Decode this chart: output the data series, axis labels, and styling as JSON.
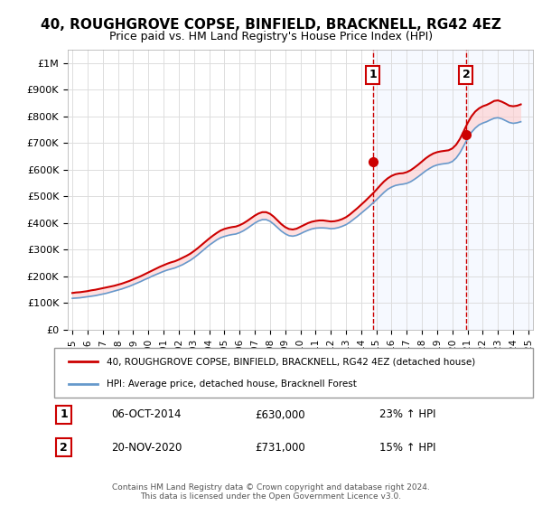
{
  "title": "40, ROUGHGROVE COPSE, BINFIELD, BRACKNELL, RG42 4EZ",
  "subtitle": "Price paid vs. HM Land Registry's House Price Index (HPI)",
  "legend_line1": "40, ROUGHGROVE COPSE, BINFIELD, BRACKNELL, RG42 4EZ (detached house)",
  "legend_line2": "HPI: Average price, detached house, Bracknell Forest",
  "annotation1_label": "1",
  "annotation1_date": "06-OCT-2014",
  "annotation1_price": "£630,000",
  "annotation1_hpi": "23% ↑ HPI",
  "annotation2_label": "2",
  "annotation2_date": "20-NOV-2020",
  "annotation2_price": "£731,000",
  "annotation2_hpi": "15% ↑ HPI",
  "footer": "Contains HM Land Registry data © Crown copyright and database right 2024.\nThis data is licensed under the Open Government Licence v3.0.",
  "red_color": "#cc0000",
  "blue_color": "#6699cc",
  "dashed_red": "#cc0000",
  "annotation_box_color": "#cc0000",
  "ylim": [
    0,
    1050000
  ],
  "yticks": [
    0,
    100000,
    200000,
    300000,
    400000,
    500000,
    600000,
    700000,
    800000,
    900000,
    1000000
  ],
  "ytick_labels": [
    "£0",
    "£100K",
    "£200K",
    "£300K",
    "£400K",
    "£500K",
    "£600K",
    "£700K",
    "£800K",
    "£900K",
    "£1M"
  ],
  "xtick_years": [
    1995,
    1996,
    1997,
    1998,
    1999,
    2000,
    2001,
    2002,
    2003,
    2004,
    2005,
    2006,
    2007,
    2008,
    2009,
    2010,
    2011,
    2012,
    2013,
    2014,
    2015,
    2016,
    2017,
    2018,
    2019,
    2020,
    2021,
    2022,
    2023,
    2024,
    2025
  ],
  "sale1_x": 2014.77,
  "sale1_y": 630000,
  "sale2_x": 2020.9,
  "sale2_y": 731000,
  "red_x": [
    1995.0,
    1995.25,
    1995.5,
    1995.75,
    1996.0,
    1996.25,
    1996.5,
    1996.75,
    1997.0,
    1997.25,
    1997.5,
    1997.75,
    1998.0,
    1998.25,
    1998.5,
    1998.75,
    1999.0,
    1999.25,
    1999.5,
    1999.75,
    2000.0,
    2000.25,
    2000.5,
    2000.75,
    2001.0,
    2001.25,
    2001.5,
    2001.75,
    2002.0,
    2002.25,
    2002.5,
    2002.75,
    2003.0,
    2003.25,
    2003.5,
    2003.75,
    2004.0,
    2004.25,
    2004.5,
    2004.75,
    2005.0,
    2005.25,
    2005.5,
    2005.75,
    2006.0,
    2006.25,
    2006.5,
    2006.75,
    2007.0,
    2007.25,
    2007.5,
    2007.75,
    2008.0,
    2008.25,
    2008.5,
    2008.75,
    2009.0,
    2009.25,
    2009.5,
    2009.75,
    2010.0,
    2010.25,
    2010.5,
    2010.75,
    2011.0,
    2011.25,
    2011.5,
    2011.75,
    2012.0,
    2012.25,
    2012.5,
    2012.75,
    2013.0,
    2013.25,
    2013.5,
    2013.75,
    2014.0,
    2014.25,
    2014.5,
    2014.75,
    2015.0,
    2015.25,
    2015.5,
    2015.75,
    2016.0,
    2016.25,
    2016.5,
    2016.75,
    2017.0,
    2017.25,
    2017.5,
    2017.75,
    2018.0,
    2018.25,
    2018.5,
    2018.75,
    2019.0,
    2019.25,
    2019.5,
    2019.75,
    2020.0,
    2020.25,
    2020.5,
    2020.75,
    2021.0,
    2021.25,
    2021.5,
    2021.75,
    2022.0,
    2022.25,
    2022.5,
    2022.75,
    2023.0,
    2023.25,
    2023.5,
    2023.75,
    2024.0,
    2024.25,
    2024.5
  ],
  "red_y": [
    138000,
    140000,
    141000,
    143000,
    145000,
    148000,
    150000,
    153000,
    156000,
    159000,
    162000,
    165000,
    169000,
    173000,
    178000,
    183000,
    189000,
    195000,
    201000,
    208000,
    215000,
    222000,
    229000,
    236000,
    242000,
    248000,
    253000,
    257000,
    263000,
    270000,
    277000,
    285000,
    295000,
    306000,
    318000,
    330000,
    342000,
    353000,
    363000,
    372000,
    378000,
    382000,
    385000,
    387000,
    392000,
    399000,
    408000,
    418000,
    428000,
    436000,
    441000,
    441000,
    435000,
    424000,
    410000,
    396000,
    385000,
    378000,
    376000,
    379000,
    386000,
    393000,
    400000,
    405000,
    408000,
    410000,
    410000,
    408000,
    406000,
    407000,
    410000,
    415000,
    422000,
    432000,
    444000,
    456000,
    469000,
    482000,
    496000,
    510000,
    525000,
    541000,
    556000,
    568000,
    577000,
    583000,
    586000,
    587000,
    591000,
    598000,
    608000,
    619000,
    631000,
    643000,
    653000,
    661000,
    666000,
    669000,
    671000,
    673000,
    680000,
    694000,
    716000,
    745000,
    775000,
    800000,
    818000,
    830000,
    838000,
    843000,
    850000,
    858000,
    860000,
    855000,
    848000,
    840000,
    838000,
    840000,
    845000
  ],
  "blue_x": [
    1995.0,
    1995.25,
    1995.5,
    1995.75,
    1996.0,
    1996.25,
    1996.5,
    1996.75,
    1997.0,
    1997.25,
    1997.5,
    1997.75,
    1998.0,
    1998.25,
    1998.5,
    1998.75,
    1999.0,
    1999.25,
    1999.5,
    1999.75,
    2000.0,
    2000.25,
    2000.5,
    2000.75,
    2001.0,
    2001.25,
    2001.5,
    2001.75,
    2002.0,
    2002.25,
    2002.5,
    2002.75,
    2003.0,
    2003.25,
    2003.5,
    2003.75,
    2004.0,
    2004.25,
    2004.5,
    2004.75,
    2005.0,
    2005.25,
    2005.5,
    2005.75,
    2006.0,
    2006.25,
    2006.5,
    2006.75,
    2007.0,
    2007.25,
    2007.5,
    2007.75,
    2008.0,
    2008.25,
    2008.5,
    2008.75,
    2009.0,
    2009.25,
    2009.5,
    2009.75,
    2010.0,
    2010.25,
    2010.5,
    2010.75,
    2011.0,
    2011.25,
    2011.5,
    2011.75,
    2012.0,
    2012.25,
    2012.5,
    2012.75,
    2013.0,
    2013.25,
    2013.5,
    2013.75,
    2014.0,
    2014.25,
    2014.5,
    2014.75,
    2015.0,
    2015.25,
    2015.5,
    2015.75,
    2016.0,
    2016.25,
    2016.5,
    2016.75,
    2017.0,
    2017.25,
    2017.5,
    2017.75,
    2018.0,
    2018.25,
    2018.5,
    2018.75,
    2019.0,
    2019.25,
    2019.5,
    2019.75,
    2020.0,
    2020.25,
    2020.5,
    2020.75,
    2021.0,
    2021.25,
    2021.5,
    2021.75,
    2022.0,
    2022.25,
    2022.5,
    2022.75,
    2023.0,
    2023.25,
    2023.5,
    2023.75,
    2024.0,
    2024.25,
    2024.5
  ],
  "blue_y": [
    118000,
    119000,
    120000,
    122000,
    124000,
    126000,
    128000,
    131000,
    134000,
    137000,
    141000,
    145000,
    149000,
    153000,
    158000,
    163000,
    169000,
    175000,
    181000,
    188000,
    194000,
    201000,
    207000,
    213000,
    219000,
    224000,
    228000,
    232000,
    238000,
    244000,
    252000,
    260000,
    270000,
    281000,
    293000,
    305000,
    317000,
    327000,
    337000,
    345000,
    350000,
    354000,
    357000,
    359000,
    364000,
    371000,
    380000,
    390000,
    400000,
    408000,
    413000,
    413000,
    407000,
    396000,
    383000,
    370000,
    360000,
    353000,
    351000,
    354000,
    360000,
    367000,
    373000,
    378000,
    381000,
    382000,
    382000,
    381000,
    379000,
    380000,
    383000,
    388000,
    394000,
    403000,
    414000,
    425000,
    437000,
    449000,
    461000,
    474000,
    487000,
    501000,
    515000,
    527000,
    535000,
    541000,
    544000,
    546000,
    549000,
    555000,
    564000,
    574000,
    585000,
    596000,
    605000,
    613000,
    618000,
    621000,
    623000,
    625000,
    631000,
    644000,
    664000,
    690000,
    717000,
    740000,
    756000,
    768000,
    775000,
    780000,
    787000,
    793000,
    795000,
    791000,
    784000,
    777000,
    774000,
    776000,
    780000
  ]
}
